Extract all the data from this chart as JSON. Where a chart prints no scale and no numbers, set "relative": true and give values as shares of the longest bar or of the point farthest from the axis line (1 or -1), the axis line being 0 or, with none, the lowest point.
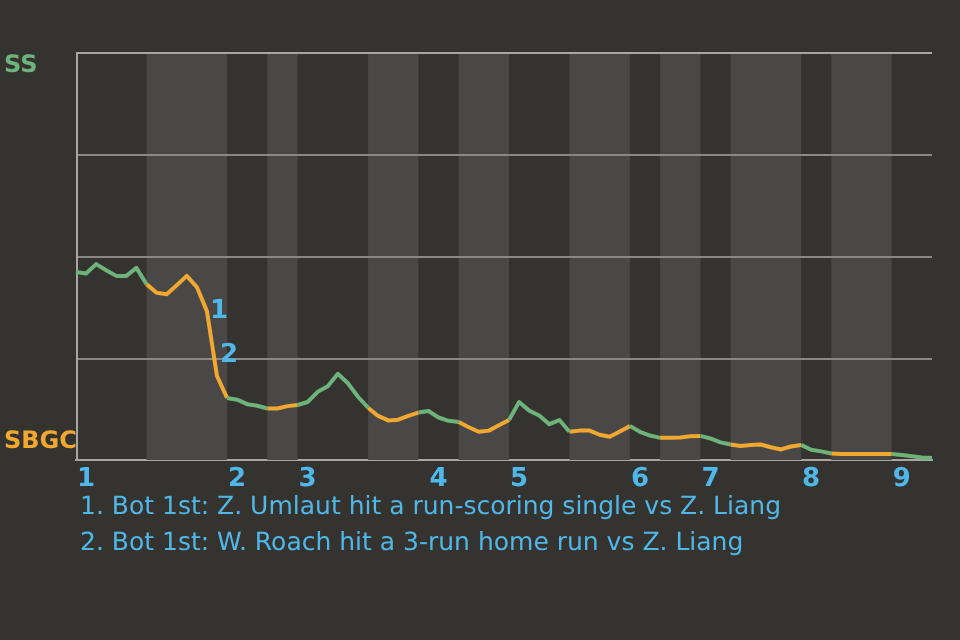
{
  "chart_data": {
    "type": "line",
    "relative": true,
    "categories": [
      null,
      "1",
      null,
      null,
      null,
      null,
      null,
      null,
      null,
      null,
      null,
      null,
      null,
      null,
      null,
      null,
      "2",
      null,
      null,
      null,
      null,
      null,
      null,
      "3",
      null,
      null,
      null,
      null,
      null,
      null,
      null,
      null,
      null,
      null,
      null,
      null,
      "4",
      null,
      null,
      null,
      null,
      null,
      null,
      null,
      "5",
      null,
      null,
      null,
      null,
      null,
      null,
      null,
      null,
      null,
      null,
      null,
      "6",
      null,
      null,
      null,
      null,
      null,
      null,
      "7",
      null,
      null,
      null,
      null,
      null,
      null,
      null,
      null,
      null,
      "8",
      null,
      null,
      null,
      null,
      null,
      null,
      null,
      null,
      "9",
      null,
      null,
      null
    ],
    "series": [
      {
        "name": "SS",
        "color": "#6db37a",
        "values": [
          0.96,
          0.952,
          1,
          0.969,
          0.94,
          0.94,
          0.981,
          0.898,
          null,
          null,
          null,
          null,
          null,
          null,
          null,
          0.317,
          0.308,
          0.285,
          0.277,
          0.263,
          null,
          null,
          0.281,
          0.296,
          0.348,
          0.377,
          0.44,
          0.392,
          0.323,
          0.267,
          null,
          null,
          null,
          null,
          0.242,
          0.25,
          0.217,
          0.2,
          0.194,
          null,
          null,
          null,
          null,
          0.204,
          0.296,
          0.252,
          0.227,
          0.183,
          0.204,
          0.144,
          null,
          null,
          null,
          null,
          null,
          0.173,
          0.144,
          0.125,
          0.113,
          null,
          null,
          null,
          0.123,
          0.11,
          0.09,
          0.079,
          null,
          null,
          null,
          null,
          null,
          null,
          0.077,
          0.052,
          0.044,
          0.033,
          null,
          null,
          null,
          null,
          null,
          0.031,
          0.025,
          0.019,
          0.013,
          0.01
        ]
      },
      {
        "name": "SBGC",
        "color": "#f0a830",
        "values": [
          null,
          null,
          null,
          null,
          null,
          null,
          null,
          0.898,
          0.854,
          0.846,
          0.892,
          0.94,
          0.883,
          0.76,
          0.429,
          0.317,
          null,
          null,
          null,
          0.263,
          0.263,
          0.275,
          0.281,
          null,
          null,
          null,
          null,
          null,
          null,
          0.267,
          0.225,
          0.202,
          0.206,
          0.225,
          0.242,
          null,
          null,
          null,
          0.194,
          0.167,
          0.144,
          0.15,
          0.177,
          0.204,
          null,
          null,
          null,
          null,
          null,
          0.144,
          0.15,
          0.15,
          0.129,
          0.119,
          0.146,
          0.173,
          null,
          null,
          0.113,
          0.113,
          0.115,
          0.121,
          0.123,
          null,
          null,
          0.079,
          0.071,
          0.077,
          0.079,
          0.065,
          0.054,
          0.069,
          0.077,
          null,
          null,
          0.033,
          0.031,
          0.031,
          0.031,
          0.031,
          0.031,
          0.031,
          null,
          null,
          null,
          null
        ]
      }
    ],
    "ref_lines": [
      {
        "axis": "y",
        "value": 0.521,
        "color": "#8a8886"
      },
      {
        "axis": "y",
        "value": 1.042,
        "color": "#8a8886"
      },
      {
        "axis": "y",
        "value": 1.563,
        "color": "#8a8886"
      },
      {
        "axis": "y",
        "value": 2.083,
        "color": "#a8a6a4"
      }
    ],
    "legend": false,
    "marker": "none",
    "line_style": "solid",
    "annotations": [
      "1",
      "2",
      "1. Bot 1st: Z. Umlaut hit a run-scoring single vs Z. Liang",
      "2. Bot 1st: W. Roach hit a 3-run home run vs Z. Liang"
    ]
  }
}
